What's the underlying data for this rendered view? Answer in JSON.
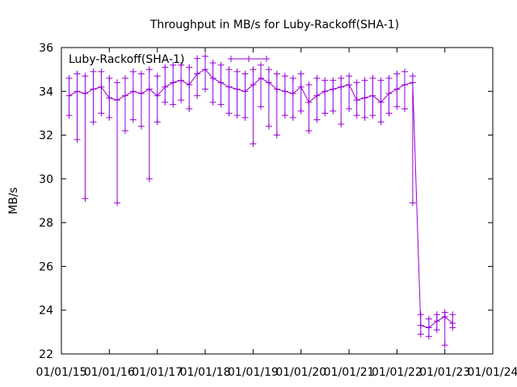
{
  "chart_data": {
    "type": "line",
    "title": "Throughput in MB/s for Luby-Rackoff(SHA-1)",
    "xlabel": "",
    "ylabel": "MB/s",
    "ylim": [
      22,
      36
    ],
    "xlim": [
      "2015-01-01",
      "2024-01-01"
    ],
    "x_ticks": [
      "01/01/15",
      "01/01/16",
      "01/01/17",
      "01/01/18",
      "01/01/19",
      "01/01/20",
      "01/01/21",
      "01/01/22",
      "01/01/23",
      "01/01/24"
    ],
    "y_ticks": [
      22,
      24,
      26,
      28,
      30,
      32,
      34,
      36
    ],
    "grid": false,
    "legend_position": "top-left",
    "marker": "plus",
    "colors": {
      "series": "#9400d3",
      "axis": "#000000"
    },
    "series": [
      {
        "name": "Luby-Rackoff(SHA-1)",
        "x": [
          "2015-03-01",
          "2015-05-01",
          "2015-07-01",
          "2015-09-01",
          "2015-11-01",
          "2016-01-01",
          "2016-03-01",
          "2016-05-01",
          "2016-07-01",
          "2016-09-01",
          "2016-11-01",
          "2017-01-01",
          "2017-03-01",
          "2017-05-01",
          "2017-07-01",
          "2017-09-01",
          "2017-11-01",
          "2018-01-01",
          "2018-03-01",
          "2018-05-01",
          "2018-07-01",
          "2018-09-01",
          "2018-11-01",
          "2019-01-01",
          "2019-03-01",
          "2019-05-01",
          "2019-07-01",
          "2019-09-01",
          "2019-11-01",
          "2020-01-01",
          "2020-03-01",
          "2020-05-01",
          "2020-07-01",
          "2020-09-01",
          "2020-11-01",
          "2021-01-01",
          "2021-03-01",
          "2021-05-01",
          "2021-07-01",
          "2021-09-01",
          "2021-11-01",
          "2022-01-01",
          "2022-03-01",
          "2022-05-01",
          "2022-07-01",
          "2022-09-01",
          "2022-11-01",
          "2023-01-01",
          "2023-03-01"
        ],
        "y": [
          33.8,
          34.0,
          33.9,
          34.1,
          34.2,
          33.7,
          33.6,
          33.8,
          34.0,
          33.9,
          34.1,
          33.8,
          34.2,
          34.4,
          34.5,
          34.3,
          34.8,
          35.0,
          34.6,
          34.4,
          34.2,
          34.1,
          34.0,
          34.3,
          34.6,
          34.4,
          34.1,
          34.0,
          33.9,
          34.2,
          33.5,
          33.8,
          34.0,
          34.1,
          34.2,
          34.3,
          33.6,
          33.7,
          33.8,
          33.5,
          33.9,
          34.1,
          34.3,
          34.4,
          23.3,
          23.2,
          23.5,
          23.7,
          23.4
        ],
        "low": [
          32.9,
          31.8,
          29.1,
          32.6,
          33.0,
          32.8,
          28.9,
          32.2,
          32.7,
          32.4,
          30.0,
          32.6,
          33.5,
          33.4,
          33.6,
          33.2,
          33.8,
          34.1,
          33.5,
          33.4,
          33.0,
          32.9,
          32.8,
          31.6,
          33.3,
          32.4,
          32.0,
          32.9,
          32.8,
          33.1,
          32.2,
          32.7,
          33.0,
          33.1,
          32.5,
          33.2,
          32.9,
          32.8,
          32.9,
          32.6,
          33.0,
          33.3,
          33.2,
          28.9,
          22.9,
          22.8,
          23.1,
          22.4,
          23.2
        ],
        "high": [
          34.6,
          34.8,
          34.7,
          34.9,
          34.9,
          34.6,
          34.4,
          34.6,
          34.9,
          34.8,
          35.0,
          34.7,
          35.1,
          35.2,
          35.2,
          35.1,
          35.5,
          35.6,
          35.3,
          35.2,
          35.0,
          34.9,
          34.8,
          35.0,
          35.2,
          35.0,
          34.8,
          34.7,
          34.6,
          34.8,
          34.3,
          34.6,
          34.5,
          34.5,
          34.6,
          34.7,
          34.4,
          34.5,
          34.6,
          34.5,
          34.6,
          34.8,
          34.9,
          34.7,
          23.8,
          23.6,
          23.8,
          23.9,
          23.8
        ]
      }
    ]
  }
}
